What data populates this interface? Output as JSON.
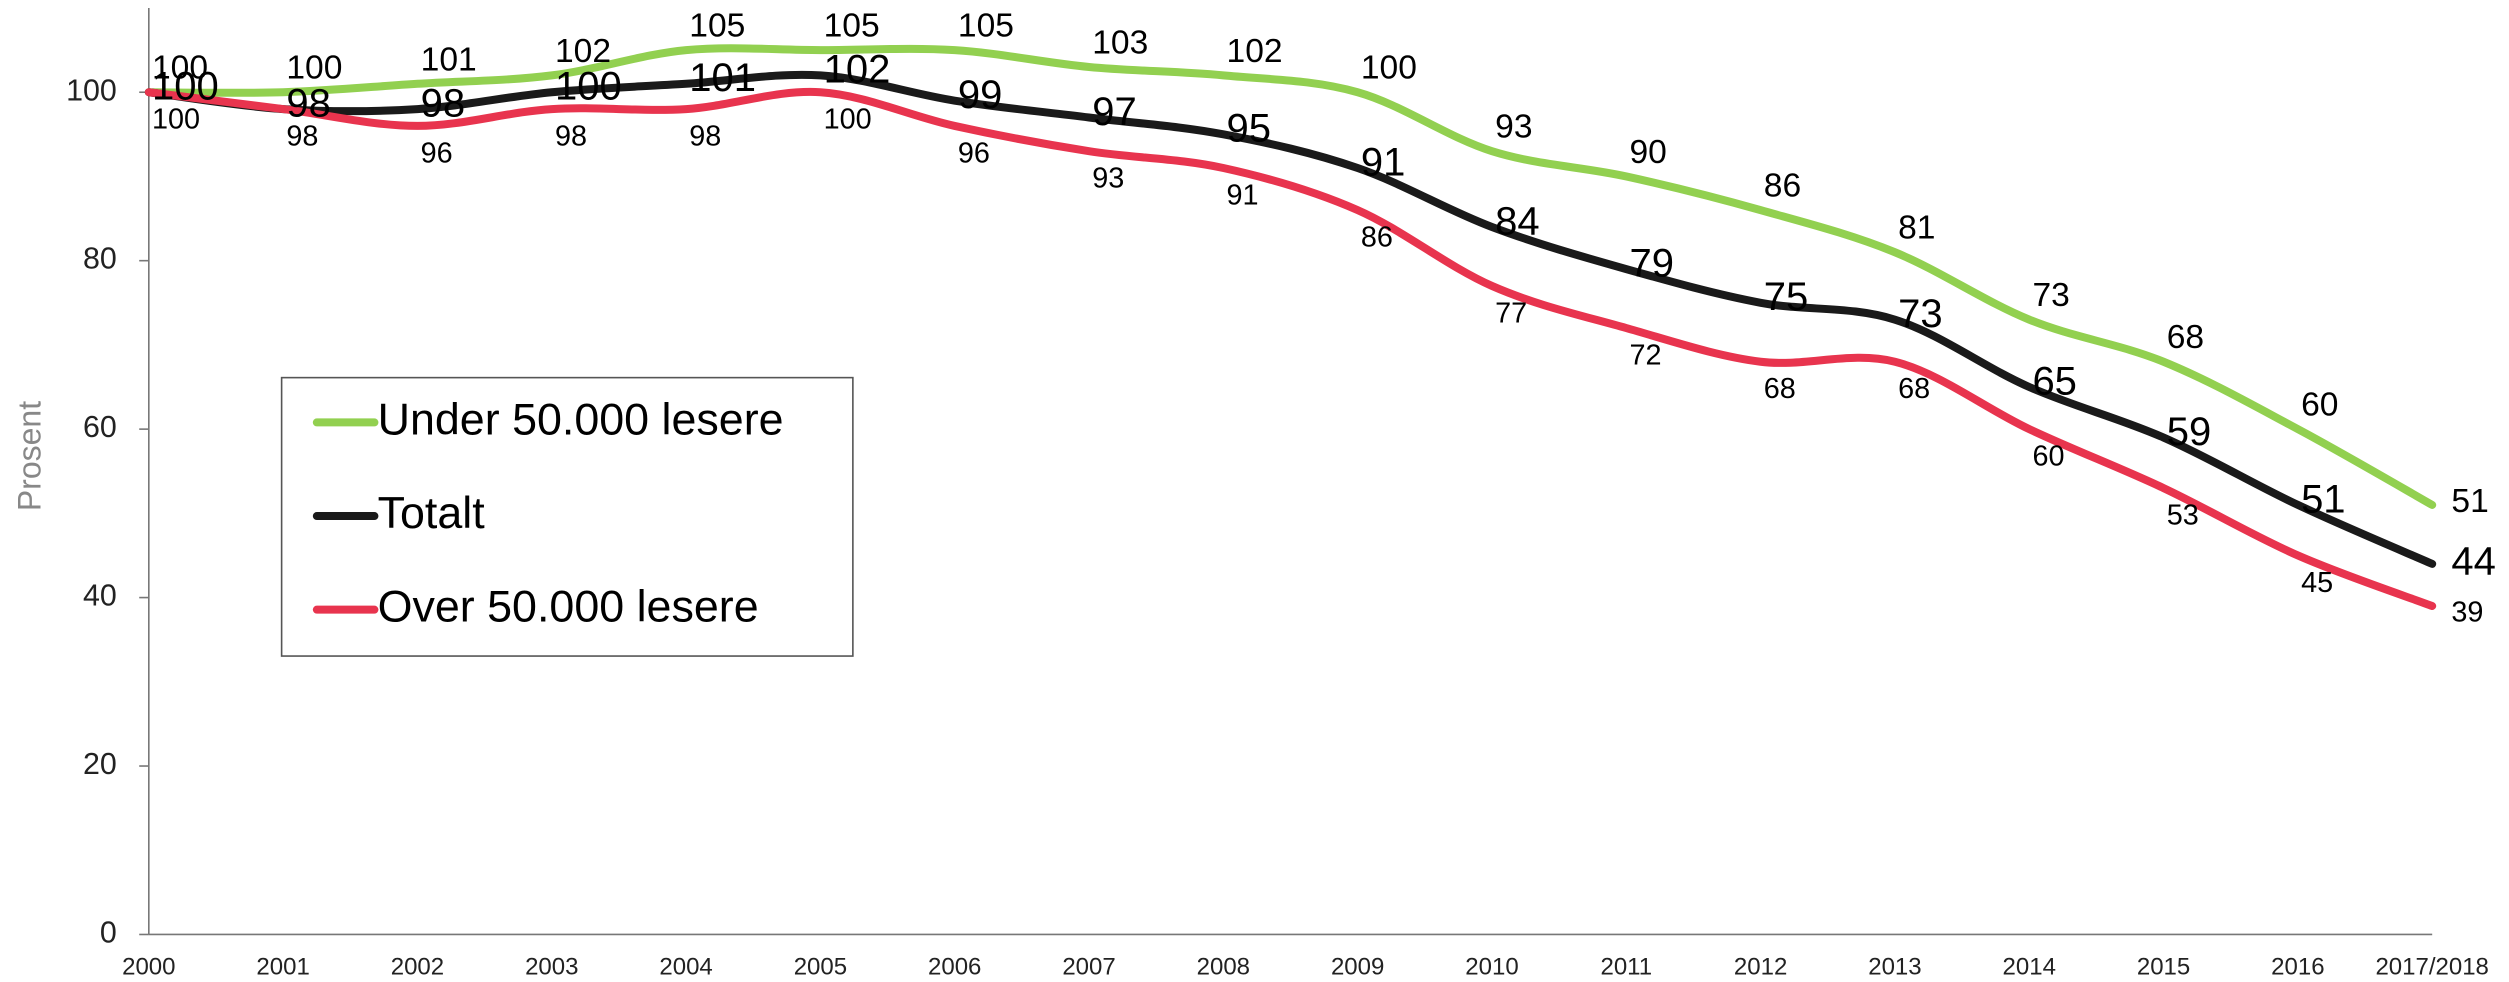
{
  "chart_data": {
    "type": "line",
    "y_label": "Prosent",
    "categories": [
      "2000",
      "2001",
      "2002",
      "2003",
      "2004",
      "2005",
      "2006",
      "2007",
      "2008",
      "2009",
      "2010",
      "2011",
      "2012",
      "2013",
      "2014",
      "2015",
      "2016",
      "2017/2018"
    ],
    "series": [
      {
        "name": "Under 50.000 lesere",
        "color": "#92d050",
        "values": [
          100,
          100,
          101,
          102,
          105,
          105,
          105,
          103,
          102,
          100,
          93,
          90,
          86,
          81,
          73,
          68,
          60,
          51
        ]
      },
      {
        "name": "Totalt",
        "color": "#1a1a1a",
        "values": [
          100,
          98,
          98,
          100,
          101,
          102,
          99,
          97,
          95,
          91,
          84,
          79,
          75,
          73,
          65,
          59,
          51,
          44
        ]
      },
      {
        "name": "Over 50.000 lesere",
        "color": "#e8344e",
        "values": [
          100,
          98,
          96,
          98,
          98,
          100,
          96,
          93,
          91,
          86,
          77,
          72,
          68,
          68,
          60,
          53,
          45,
          39
        ]
      }
    ],
    "ylim": [
      0,
      110
    ],
    "yticks": [
      0,
      20,
      40,
      60,
      80,
      100
    ],
    "legend": "left"
  }
}
